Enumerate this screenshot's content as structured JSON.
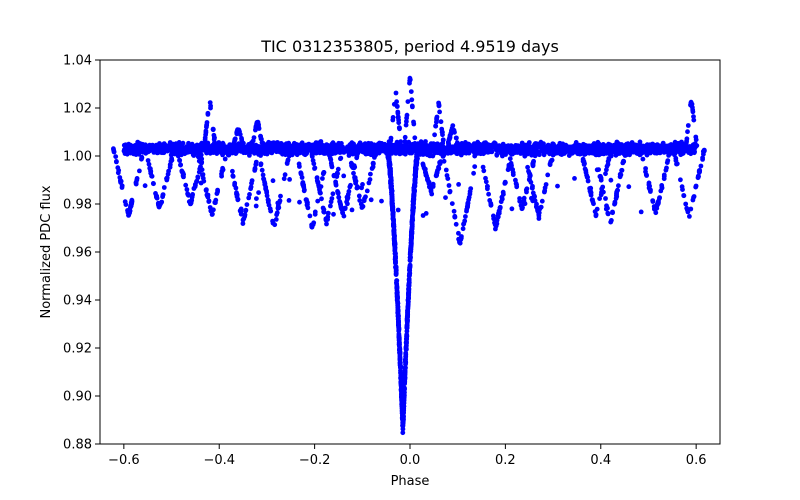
{
  "chart_data": {
    "type": "scatter",
    "title": "TIC 0312353805, period 4.9519 days",
    "xlabel": "Phase",
    "ylabel": "Normalized PDC flux",
    "xlim": [
      -0.65,
      0.65
    ],
    "ylim": [
      0.88,
      1.04
    ],
    "grid": false,
    "x_ticks": [
      -0.6,
      -0.4,
      -0.2,
      0.0,
      0.2,
      0.4,
      0.6
    ],
    "x_tick_labels": [
      "−0.6",
      "−0.4",
      "−0.2",
      "0.0",
      "0.2",
      "0.4",
      "0.6"
    ],
    "y_ticks": [
      0.88,
      0.9,
      0.92,
      0.94,
      0.96,
      0.98,
      1.0,
      1.02,
      1.04
    ],
    "y_tick_labels": [
      "0.88",
      "0.90",
      "0.92",
      "0.94",
      "0.96",
      "0.98",
      "1.00",
      "1.02",
      "1.04"
    ],
    "marker_color": "#0000ff",
    "baseline": 1.003,
    "primary_eclipse": {
      "phase": -0.015,
      "min_flux": 0.887
    },
    "dips": [
      {
        "phase": -0.59,
        "min_flux": 0.975
      },
      {
        "phase": -0.525,
        "min_flux": 0.978
      },
      {
        "phase": -0.46,
        "min_flux": 0.98
      },
      {
        "phase": -0.415,
        "min_flux": 0.975
      },
      {
        "phase": -0.35,
        "min_flux": 0.972
      },
      {
        "phase": -0.285,
        "min_flux": 0.97
      },
      {
        "phase": -0.205,
        "min_flux": 0.97
      },
      {
        "phase": -0.175,
        "min_flux": 0.972
      },
      {
        "phase": -0.14,
        "min_flux": 0.975
      },
      {
        "phase": -0.1,
        "min_flux": 0.978
      },
      {
        "phase": 0.045,
        "min_flux": 0.985
      },
      {
        "phase": 0.105,
        "min_flux": 0.963
      },
      {
        "phase": 0.18,
        "min_flux": 0.97
      },
      {
        "phase": 0.235,
        "min_flux": 0.978
      },
      {
        "phase": 0.27,
        "min_flux": 0.975
      },
      {
        "phase": 0.39,
        "min_flux": 0.975
      },
      {
        "phase": 0.42,
        "min_flux": 0.972
      },
      {
        "phase": 0.515,
        "min_flux": 0.976
      },
      {
        "phase": 0.585,
        "min_flux": 0.974
      }
    ],
    "spikes": [
      {
        "phase": -0.42,
        "max_flux": 1.024
      },
      {
        "phase": -0.36,
        "max_flux": 1.012
      },
      {
        "phase": -0.32,
        "max_flux": 1.015
      },
      {
        "phase": -0.03,
        "max_flux": 1.027
      },
      {
        "phase": 0.0,
        "max_flux": 1.033
      },
      {
        "phase": 0.06,
        "max_flux": 1.022
      },
      {
        "phase": 0.09,
        "max_flux": 1.013
      },
      {
        "phase": 0.59,
        "max_flux": 1.024
      }
    ]
  }
}
